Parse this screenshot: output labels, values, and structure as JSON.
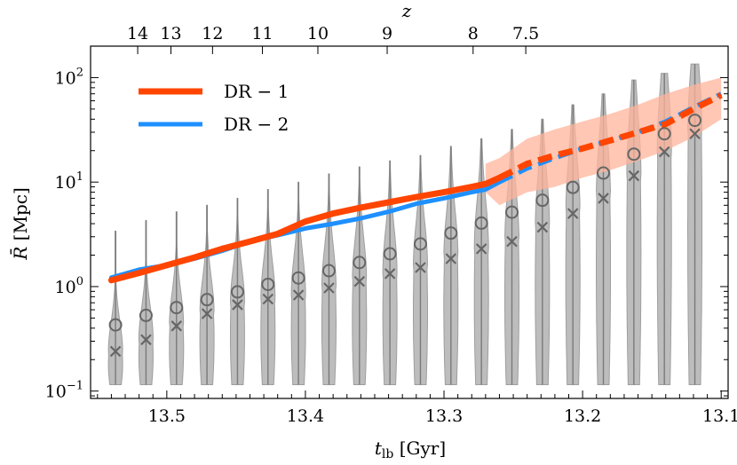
{
  "chart_data": {
    "type": "line",
    "xlabel": "t_lb [Gyr]",
    "xlabel_main": "t",
    "xlabel_sub": "lb",
    "xlabel_unit": " [Gyr]",
    "ylabel": "R̄ [Mpc]",
    "ylabel_main": "R̄",
    "ylabel_unit": " [Mpc]",
    "top_label": "z",
    "xlim": [
      13.555,
      13.095
    ],
    "ylim": [
      0.085,
      200
    ],
    "yscale": "log",
    "x_ticks": [
      13.5,
      13.4,
      13.3,
      13.2,
      13.1
    ],
    "x_tick_labels": [
      "13.5",
      "13.4",
      "13.3",
      "13.2",
      "13.1"
    ],
    "y_ticks": [
      0.1,
      1,
      10,
      100
    ],
    "y_tick_labels": [
      {
        "base": "10",
        "exp": "−1"
      },
      {
        "base": "10",
        "exp": "0"
      },
      {
        "base": "10",
        "exp": "1"
      },
      {
        "base": "10",
        "exp": "2"
      }
    ],
    "top_ticks": [
      {
        "label": "14",
        "x": 13.521
      },
      {
        "label": "13",
        "x": 13.497
      },
      {
        "label": "12",
        "x": 13.467
      },
      {
        "label": "11",
        "x": 13.431
      },
      {
        "label": "10",
        "x": 13.391
      },
      {
        "label": "9",
        "x": 13.341
      },
      {
        "label": "8",
        "x": 13.279
      },
      {
        "label": "7.5",
        "x": 13.241
      }
    ],
    "legend": [
      {
        "name": "DR − 1",
        "color": "#ff4500"
      },
      {
        "name": "DR − 2",
        "color": "#1e90ff"
      }
    ],
    "series": [
      {
        "name": "DR − 1",
        "color": "#ff4500",
        "x": [
          13.54,
          13.52,
          13.5,
          13.48,
          13.46,
          13.44,
          13.42,
          13.4,
          13.38,
          13.36,
          13.34,
          13.32,
          13.3,
          13.28,
          13.27,
          13.26,
          13.24,
          13.22,
          13.2,
          13.18,
          13.16,
          13.14,
          13.12,
          13.1
        ],
        "y": [
          1.15,
          1.35,
          1.6,
          1.9,
          2.3,
          2.7,
          3.2,
          4.2,
          5.0,
          5.7,
          6.4,
          7.2,
          8.0,
          9.0,
          9.6,
          11.0,
          15.0,
          18.0,
          21.0,
          25.0,
          30.0,
          36.0,
          50.0,
          68.0
        ],
        "dashed_from": 13.26
      },
      {
        "name": "DR − 2",
        "color": "#1e90ff",
        "x": [
          13.54,
          13.52,
          13.5,
          13.48,
          13.46,
          13.44,
          13.42,
          13.4,
          13.38,
          13.36,
          13.34,
          13.32,
          13.3,
          13.28,
          13.27,
          13.26,
          13.24,
          13.22,
          13.2,
          13.18,
          13.16,
          13.14,
          13.12,
          13.1
        ],
        "y": [
          1.22,
          1.45,
          1.6,
          1.85,
          2.2,
          2.7,
          3.1,
          3.6,
          4.0,
          4.5,
          5.2,
          6.2,
          7.0,
          8.0,
          8.5,
          10.0,
          13.5,
          17.0,
          21.0,
          25.0,
          30.0,
          38.0,
          52.0,
          70.0
        ],
        "dashed_from": 13.26
      }
    ],
    "band": {
      "name": "DR − 1 spread",
      "color": "#ffb49b",
      "x": [
        13.27,
        13.26,
        13.24,
        13.22,
        13.2,
        13.18,
        13.16,
        13.14,
        13.12,
        13.1
      ],
      "lower": [
        8.0,
        6.0,
        8.0,
        9.0,
        11.0,
        13.0,
        16.0,
        20.0,
        27.0,
        40.0
      ],
      "upper": [
        15.0,
        17.0,
        26.0,
        32.0,
        38.0,
        45.0,
        55.0,
        70.0,
        85.0,
        100.0
      ]
    },
    "violins": {
      "x": [
        13.537,
        13.515,
        13.493,
        13.471,
        13.449,
        13.427,
        13.405,
        13.383,
        13.361,
        13.339,
        13.317,
        13.295,
        13.273,
        13.251,
        13.229,
        13.207,
        13.185,
        13.163,
        13.141,
        13.119
      ],
      "min": [
        0.115,
        0.115,
        0.115,
        0.115,
        0.115,
        0.115,
        0.115,
        0.115,
        0.115,
        0.115,
        0.115,
        0.115,
        0.115,
        0.115,
        0.115,
        0.115,
        0.115,
        0.115,
        0.115,
        0.115
      ],
      "max": [
        3.4,
        4.3,
        5.2,
        6.0,
        7.0,
        8.5,
        10.0,
        12.0,
        14.0,
        16.0,
        18.0,
        22.0,
        26.0,
        32.0,
        40.0,
        55.0,
        70.0,
        95.0,
        110.0,
        135.0
      ],
      "mean": [
        0.43,
        0.53,
        0.63,
        0.75,
        0.89,
        1.05,
        1.21,
        1.42,
        1.7,
        2.06,
        2.56,
        3.25,
        4.05,
        5.15,
        6.7,
        8.9,
        12.2,
        18.5,
        29.0,
        39.0
      ],
      "median": [
        0.24,
        0.31,
        0.42,
        0.55,
        0.67,
        0.76,
        0.83,
        0.97,
        1.12,
        1.33,
        1.52,
        1.85,
        2.3,
        2.7,
        3.7,
        5.0,
        7.0,
        11.5,
        19.5,
        29.0
      ]
    }
  }
}
